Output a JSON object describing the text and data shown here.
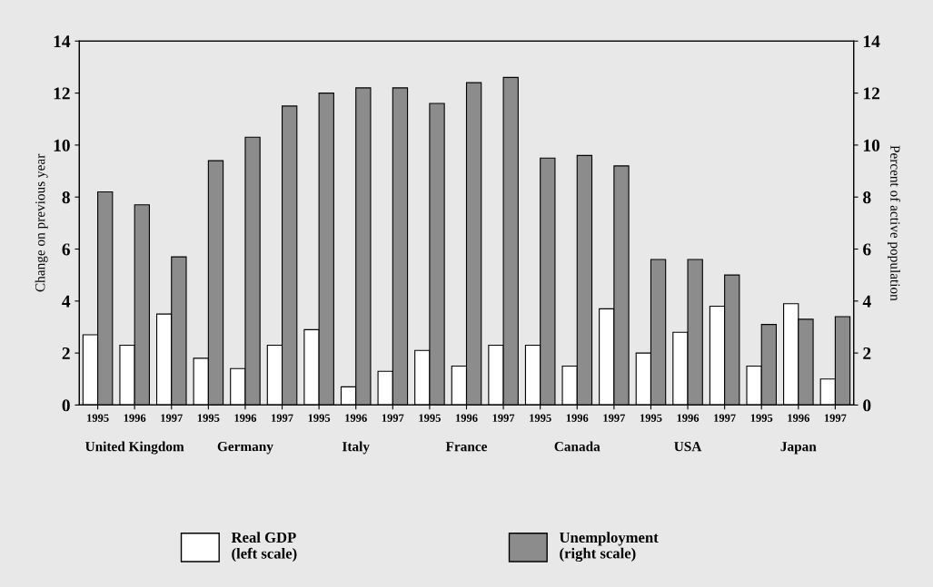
{
  "chart_data": {
    "type": "bar",
    "ylabel": "Change on previous year",
    "y2label": "Percent of active population",
    "categories": [
      "1995",
      "1996",
      "1997",
      "1995",
      "1996",
      "1997",
      "1995",
      "1996",
      "1997",
      "1995",
      "1996",
      "1997",
      "1995",
      "1996",
      "1997",
      "1995",
      "1996",
      "1997",
      "1995",
      "1996",
      "1997"
    ],
    "annotations": [
      "United Kingdom",
      "Germany",
      "Italy",
      "France",
      "Canada",
      "USA",
      "Japan"
    ],
    "series": [
      {
        "name": "Real GDP\n(left scale)",
        "color": "#ffffff",
        "values": [
          2.7,
          2.3,
          3.5,
          1.8,
          1.4,
          2.3,
          2.9,
          0.7,
          1.3,
          2.1,
          1.5,
          2.3,
          2.3,
          1.5,
          3.7,
          2.0,
          2.8,
          3.8,
          1.5,
          3.9,
          1.0
        ]
      },
      {
        "name": "Unemployment\n(right scale)",
        "color": "#8c8c8c",
        "axis": "y2",
        "values": [
          8.2,
          7.7,
          5.7,
          9.4,
          10.3,
          11.5,
          12.0,
          12.2,
          12.2,
          11.6,
          12.4,
          12.6,
          9.5,
          9.6,
          9.2,
          5.6,
          5.6,
          5.0,
          3.1,
          3.3,
          3.4
        ]
      }
    ],
    "ylim": [
      0,
      14
    ],
    "yticks": [
      0,
      2,
      4,
      6,
      8,
      10,
      12,
      14
    ],
    "y2lim": [
      0,
      14
    ],
    "y2ticks": [
      0,
      2,
      4,
      6,
      8,
      10,
      12,
      14
    ],
    "grid": false,
    "legend": "bottom"
  }
}
